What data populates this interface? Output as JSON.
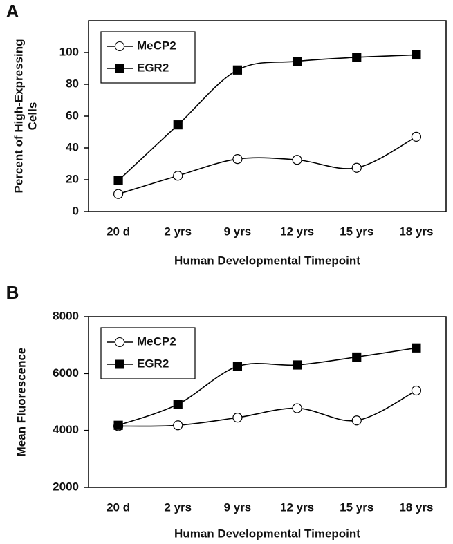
{
  "chart_data": [
    {
      "type": "line",
      "label": "A",
      "ylabel": [
        "Percent of High-Expressing",
        "Cells"
      ],
      "xlabel": "Human Developmental Timepoint",
      "categories": [
        "20 d",
        "2 yrs",
        "9 yrs",
        "12 yrs",
        "15 yrs",
        "18 yrs"
      ],
      "series": [
        {
          "name": "MeCP2",
          "color": "#000000",
          "marker": "circle",
          "marker_fill": "#ffffff",
          "values": [
            11,
            22.5,
            33,
            32.5,
            27.5,
            47
          ]
        },
        {
          "name": "EGR2",
          "color": "#000000",
          "marker": "square",
          "marker_fill": "#000000",
          "values": [
            19.5,
            54.5,
            89,
            94.5,
            97,
            98.5
          ]
        }
      ],
      "ylim": [
        0,
        120
      ],
      "yticks": [
        0,
        20,
        40,
        60,
        80,
        100
      ],
      "legend": "upper left",
      "smooth": true
    },
    {
      "type": "line",
      "label": "B",
      "ylabel": "Mean Fluorescence",
      "xlabel": "Human Developmental Timepoint",
      "categories": [
        "20 d",
        "2 yrs",
        "9 yrs",
        "12 yrs",
        "15 yrs",
        "18 yrs"
      ],
      "series": [
        {
          "name": "MeCP2",
          "color": "#000000",
          "marker": "circle",
          "marker_fill": "#ffffff",
          "values": [
            4150,
            4180,
            4450,
            4780,
            4350,
            5400
          ]
        },
        {
          "name": "EGR2",
          "color": "#000000",
          "marker": "square",
          "marker_fill": "#000000",
          "values": [
            4180,
            4920,
            6250,
            6300,
            6580,
            6900
          ]
        }
      ],
      "ylim": [
        2000,
        8000
      ],
      "yticks": [
        2000,
        4000,
        6000,
        8000
      ],
      "legend": "upper left",
      "smooth": true
    }
  ]
}
